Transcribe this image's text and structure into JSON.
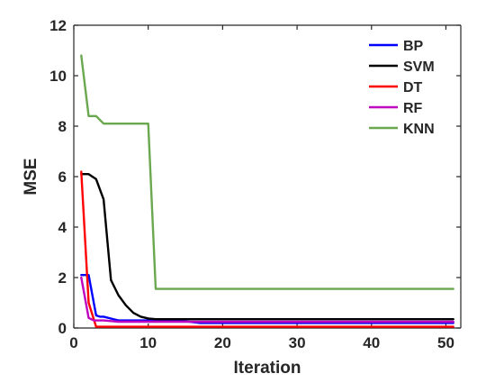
{
  "chart_data": {
    "type": "line",
    "title": "",
    "xlabel": "Iteration",
    "ylabel": "MSE",
    "xlim": [
      0,
      52
    ],
    "ylim": [
      0,
      12
    ],
    "xticks": [
      0,
      10,
      20,
      30,
      40,
      50
    ],
    "yticks": [
      0,
      2,
      4,
      6,
      8,
      10,
      12
    ],
    "grid": false,
    "legend": "top-right",
    "series": [
      {
        "name": "BP",
        "color": "#0000ff",
        "x": [
          1,
          2,
          3,
          3.5,
          4,
          6,
          10,
          14,
          17,
          24,
          51
        ],
        "y": [
          2.1,
          2.1,
          0.5,
          0.45,
          0.45,
          0.3,
          0.3,
          0.3,
          0.2,
          0.2,
          0.2
        ]
      },
      {
        "name": "SVM",
        "color": "#000000",
        "x": [
          1,
          2,
          3,
          4,
          5,
          6,
          7,
          8,
          9,
          10,
          11,
          51
        ],
        "y": [
          6.1,
          6.1,
          5.9,
          5.1,
          1.9,
          1.3,
          0.9,
          0.6,
          0.45,
          0.38,
          0.35,
          0.35
        ]
      },
      {
        "name": "DT",
        "color": "#ff0000",
        "x": [
          1,
          2,
          3,
          51
        ],
        "y": [
          6.2,
          1.0,
          0.05,
          0.05
        ]
      },
      {
        "name": "RF",
        "color": "#c000c0",
        "x": [
          1,
          2,
          2.7,
          4,
          6,
          10,
          51
        ],
        "y": [
          2.0,
          0.4,
          0.3,
          0.3,
          0.25,
          0.25,
          0.25
        ]
      },
      {
        "name": "KNN",
        "color": "#6aa84f",
        "x": [
          1,
          2,
          3,
          4,
          5,
          10,
          11,
          51
        ],
        "y": [
          10.8,
          8.4,
          8.4,
          8.1,
          8.1,
          8.1,
          1.55,
          1.55
        ]
      }
    ]
  }
}
